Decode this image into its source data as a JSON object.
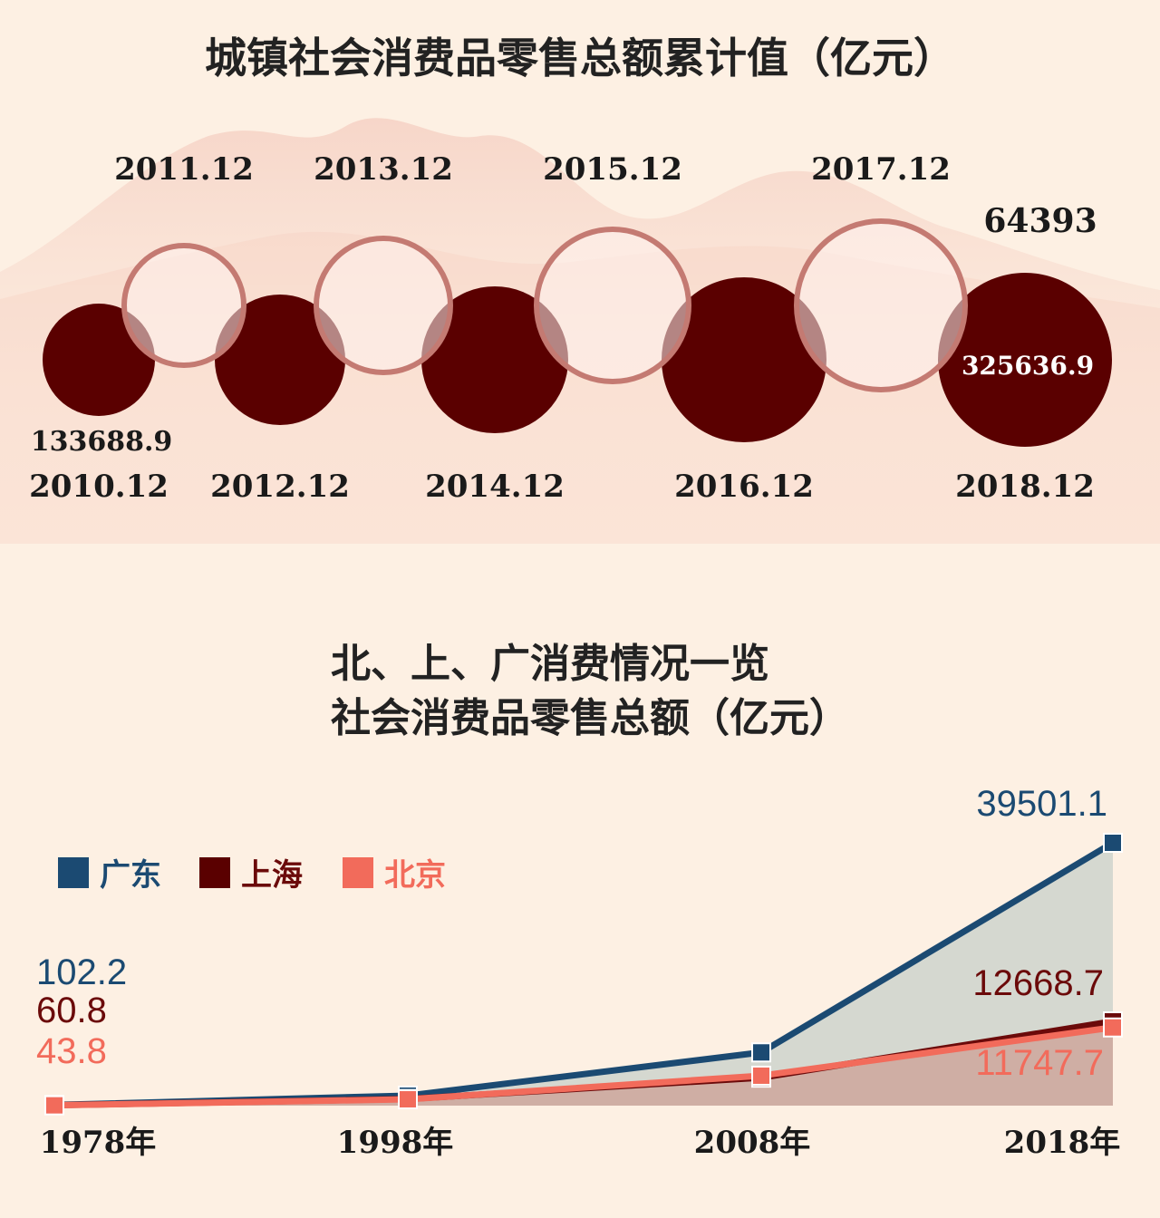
{
  "title_top": "城镇社会消费品零售总额累计值（亿元）",
  "title_bottom_line1": "北、上、广消费情况一览",
  "title_bottom_line2": "社会消费品零售总额（亿元）",
  "colors": {
    "background": "#fdf0e3",
    "filled_circle": "#5a0000",
    "ring": "#c47a72",
    "guangdong": "#1b4a72",
    "shanghai": "#6b0a0a",
    "beijing": "#f26b5b"
  },
  "chart_data": [
    {
      "type": "bubble",
      "title": "城镇社会消费品零售总额累计值（亿元）",
      "categories": [
        "2010.12",
        "2011.12",
        "2012.12",
        "2013.12",
        "2014.12",
        "2015.12",
        "2016.12",
        "2017.12",
        "2018.12"
      ],
      "style": [
        "filled",
        "ring",
        "filled",
        "ring",
        "filled",
        "ring",
        "filled",
        "ring",
        "filled"
      ],
      "labeled_values": [
        {
          "category": "2010.12",
          "label": "133688.9",
          "value": 133688.9
        },
        {
          "category": "2018.12",
          "label": "325636.9",
          "value": 325636.9
        }
      ],
      "annotations": [
        "64393"
      ]
    },
    {
      "type": "area",
      "title": "社会消费品零售总额（亿元）",
      "categories": [
        "1978年",
        "1998年",
        "2008年",
        "2018年"
      ],
      "ylim": [
        0,
        40000
      ],
      "legend_position": "top-left",
      "series": [
        {
          "name": "广东",
          "color": "#1b4a72",
          "values": [
            102.2,
            1500,
            8000,
            39501.1
          ],
          "labels": [
            "102.2",
            "",
            "",
            "39501.1"
          ]
        },
        {
          "name": "上海",
          "color": "#6b0a0a",
          "values": [
            60.8,
            1000,
            4200,
            12668.7
          ],
          "labels": [
            "60.8",
            "",
            "",
            "12668.7"
          ]
        },
        {
          "name": "北京",
          "color": "#f26b5b",
          "values": [
            43.8,
            950,
            4500,
            11747.7
          ],
          "labels": [
            "43.8",
            "",
            "",
            "11747.7"
          ]
        }
      ]
    }
  ]
}
